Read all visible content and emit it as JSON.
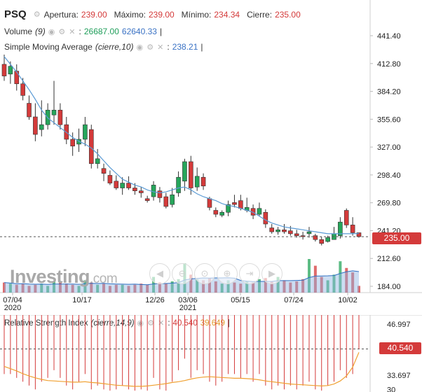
{
  "header": {
    "symbol": "PSQ",
    "open_label": "Apertura:",
    "open_value": "239.00",
    "high_label": "Máximo:",
    "high_value": "239.00",
    "low_label": "Mínimo:",
    "low_value": "234.34",
    "close_label": "Cierre:",
    "close_value": "235.00"
  },
  "volume_legend": {
    "label": "Volume",
    "param": "(9)",
    "value_1": "26687.00",
    "value_2": "62640.33"
  },
  "sma_legend": {
    "label": "Simple Moving Average",
    "param": "(cierre,10)",
    "value": "238.21"
  },
  "rsi_legend": {
    "label": "Relative Strength Index",
    "param": "(cierre,14,9)",
    "value_1": "40.540",
    "value_2": "39.649"
  },
  "legend_controls_icon": "eye gear close icons",
  "price_axis": [
    "441.40",
    "412.80",
    "384.20",
    "355.60",
    "327.00",
    "298.40",
    "269.80",
    "241.20",
    "212.60",
    "184.00"
  ],
  "current_price_badge": "235.00",
  "rsi_axis": [
    "46.997",
    "33.697",
    "30"
  ],
  "rsi_badge": "40.540",
  "x_axis": [
    {
      "label": "07/04",
      "sub": "2020"
    },
    {
      "label": "10/17",
      "sub": ""
    },
    {
      "label": "12/26",
      "sub": ""
    },
    {
      "label": "03/06",
      "sub": "2021"
    },
    {
      "label": "05/15",
      "sub": ""
    },
    {
      "label": "07/24",
      "sub": ""
    },
    {
      "label": "10/02",
      "sub": ""
    }
  ],
  "watermark": {
    "brand": "Investing",
    "suffix": ".com"
  },
  "nav_controls": [
    "prev-icon",
    "zoom-out-icon",
    "zoom-reset-icon",
    "zoom-in-icon",
    "scroll-right-icon",
    "next-icon"
  ],
  "colors": {
    "up": "#26a65b",
    "down": "#d43a3a",
    "sma": "#5b9bd5",
    "rsi_signal": "#f0a030",
    "volume": "#2f6fc1"
  },
  "chart_data": {
    "type": "candlestick",
    "price_ylim": [
      184.0,
      441.4
    ],
    "candles": [
      {
        "o": 412,
        "h": 422,
        "l": 395,
        "c": 400
      },
      {
        "o": 402,
        "h": 415,
        "l": 392,
        "c": 410
      },
      {
        "o": 405,
        "h": 412,
        "l": 385,
        "c": 392
      },
      {
        "o": 392,
        "h": 398,
        "l": 375,
        "c": 380
      },
      {
        "o": 372,
        "h": 380,
        "l": 355,
        "c": 358
      },
      {
        "o": 358,
        "h": 372,
        "l": 333,
        "c": 340
      },
      {
        "o": 345,
        "h": 375,
        "l": 338,
        "c": 350
      },
      {
        "o": 350,
        "h": 372,
        "l": 345,
        "c": 365
      },
      {
        "o": 360,
        "h": 395,
        "l": 350,
        "c": 365
      },
      {
        "o": 365,
        "h": 372,
        "l": 345,
        "c": 350
      },
      {
        "o": 350,
        "h": 358,
        "l": 330,
        "c": 335
      },
      {
        "o": 335,
        "h": 342,
        "l": 318,
        "c": 328
      },
      {
        "o": 330,
        "h": 346,
        "l": 322,
        "c": 335
      },
      {
        "o": 335,
        "h": 358,
        "l": 328,
        "c": 350
      },
      {
        "o": 345,
        "h": 350,
        "l": 305,
        "c": 310
      },
      {
        "o": 310,
        "h": 325,
        "l": 305,
        "c": 315
      },
      {
        "o": 305,
        "h": 310,
        "l": 292,
        "c": 300
      },
      {
        "o": 298,
        "h": 303,
        "l": 288,
        "c": 290
      },
      {
        "o": 292,
        "h": 298,
        "l": 283,
        "c": 285
      },
      {
        "o": 285,
        "h": 296,
        "l": 278,
        "c": 290
      },
      {
        "o": 290,
        "h": 297,
        "l": 283,
        "c": 285
      },
      {
        "o": 285,
        "h": 290,
        "l": 278,
        "c": 282
      },
      {
        "o": 282,
        "h": 286,
        "l": 275,
        "c": 280
      },
      {
        "o": 274,
        "h": 277,
        "l": 270,
        "c": 272
      },
      {
        "o": 276,
        "h": 292,
        "l": 272,
        "c": 288
      },
      {
        "o": 282,
        "h": 286,
        "l": 270,
        "c": 275
      },
      {
        "o": 276,
        "h": 280,
        "l": 264,
        "c": 266
      },
      {
        "o": 268,
        "h": 285,
        "l": 265,
        "c": 278
      },
      {
        "o": 280,
        "h": 302,
        "l": 276,
        "c": 296
      },
      {
        "o": 292,
        "h": 315,
        "l": 282,
        "c": 312
      },
      {
        "o": 312,
        "h": 318,
        "l": 278,
        "c": 285
      },
      {
        "o": 286,
        "h": 306,
        "l": 282,
        "c": 297
      },
      {
        "o": 296,
        "h": 300,
        "l": 283,
        "c": 287
      },
      {
        "o": 274,
        "h": 276,
        "l": 262,
        "c": 265
      },
      {
        "o": 262,
        "h": 265,
        "l": 255,
        "c": 258
      },
      {
        "o": 257,
        "h": 262,
        "l": 255,
        "c": 260
      },
      {
        "o": 260,
        "h": 272,
        "l": 256,
        "c": 268
      },
      {
        "o": 270,
        "h": 278,
        "l": 265,
        "c": 268
      },
      {
        "o": 272,
        "h": 278,
        "l": 262,
        "c": 264
      },
      {
        "o": 262,
        "h": 275,
        "l": 260,
        "c": 265
      },
      {
        "o": 264,
        "h": 268,
        "l": 253,
        "c": 257
      },
      {
        "o": 258,
        "h": 270,
        "l": 256,
        "c": 264
      },
      {
        "o": 260,
        "h": 263,
        "l": 244,
        "c": 248
      },
      {
        "o": 244,
        "h": 248,
        "l": 238,
        "c": 240
      },
      {
        "o": 240,
        "h": 245,
        "l": 237,
        "c": 242
      },
      {
        "o": 242,
        "h": 248,
        "l": 238,
        "c": 240
      },
      {
        "o": 241,
        "h": 246,
        "l": 236,
        "c": 238
      },
      {
        "o": 238,
        "h": 242,
        "l": 234,
        "c": 236
      },
      {
        "o": 236,
        "h": 240,
        "l": 232,
        "c": 235
      },
      {
        "o": 238,
        "h": 245,
        "l": 234,
        "c": 240
      },
      {
        "o": 236,
        "h": 238,
        "l": 230,
        "c": 232
      },
      {
        "o": 232,
        "h": 235,
        "l": 226,
        "c": 228
      },
      {
        "o": 230,
        "h": 236,
        "l": 229,
        "c": 234
      },
      {
        "o": 232,
        "h": 245,
        "l": 232,
        "c": 238
      },
      {
        "o": 236,
        "h": 255,
        "l": 233,
        "c": 250
      },
      {
        "o": 262,
        "h": 264,
        "l": 244,
        "c": 247
      },
      {
        "o": 247,
        "h": 255,
        "l": 236,
        "c": 239
      },
      {
        "o": 239,
        "h": 239,
        "l": 234,
        "c": 235
      }
    ],
    "sma": [
      420,
      412,
      404,
      395,
      386,
      376,
      365,
      357,
      352,
      347,
      342,
      337,
      333,
      330,
      326,
      320,
      313,
      306,
      300,
      294,
      291,
      288,
      286,
      283,
      281,
      280,
      281,
      283,
      285,
      286,
      283,
      279,
      276,
      274,
      272,
      269,
      267,
      266,
      264,
      262,
      260,
      256,
      252,
      249,
      247,
      245,
      244,
      243,
      242,
      241,
      240,
      239,
      238,
      238,
      238,
      238,
      238,
      238.21
    ],
    "volume": [
      9,
      8,
      7,
      8,
      6,
      7,
      8,
      6,
      10,
      9,
      8,
      7,
      6,
      11,
      9,
      7,
      8,
      6,
      7,
      7,
      6,
      7,
      8,
      7,
      14,
      9,
      8,
      10,
      12,
      26,
      16,
      12,
      11,
      13,
      10,
      8,
      11,
      9,
      8,
      10,
      9,
      12,
      13,
      10,
      14,
      11,
      9,
      10,
      12,
      30,
      24,
      14,
      11,
      16,
      28,
      22,
      18,
      6
    ],
    "rsi": [
      34,
      34,
      33,
      32,
      31,
      30,
      32,
      33,
      35,
      33,
      31,
      30,
      32,
      34,
      30,
      31,
      30,
      29,
      30,
      31,
      30,
      29,
      30,
      29,
      33,
      30,
      29,
      32,
      35,
      38,
      33,
      35,
      34,
      32,
      31,
      32,
      34,
      34,
      33,
      34,
      32,
      34,
      31,
      30,
      31,
      30,
      31,
      30,
      31,
      32,
      30,
      29,
      31,
      32,
      35,
      33,
      34,
      40.54
    ],
    "rsi_signal": [
      36,
      35.4,
      34.8,
      34.1,
      33.5,
      33,
      32.6,
      32.3,
      32.2,
      32.1,
      32,
      31.9,
      31.9,
      32,
      31.8,
      31.7,
      31.5,
      31.3,
      31.1,
      31,
      30.9,
      30.8,
      30.8,
      30.9,
      31.1,
      31.3,
      31.5,
      31.8,
      32,
      32.3,
      32.7,
      33,
      33.2,
      33.3,
      33.2,
      33.1,
      33,
      32.9,
      32.9,
      32.8,
      32.7,
      32.5,
      32.2,
      32,
      31.8,
      31.6,
      31.4,
      31.3,
      31.2,
      31.1,
      31,
      30.9,
      31,
      31.4,
      32.2,
      33.5,
      35.8,
      39.649
    ],
    "rsi_ylim": [
      30,
      48
    ]
  }
}
